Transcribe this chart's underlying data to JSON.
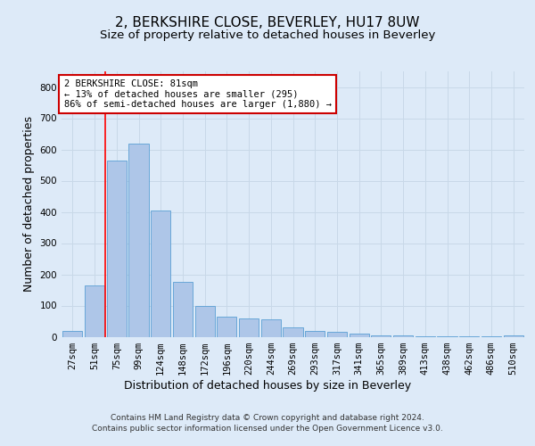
{
  "title": "2, BERKSHIRE CLOSE, BEVERLEY, HU17 8UW",
  "subtitle": "Size of property relative to detached houses in Beverley",
  "xlabel": "Distribution of detached houses by size in Beverley",
  "ylabel": "Number of detached properties",
  "footer_line1": "Contains HM Land Registry data © Crown copyright and database right 2024.",
  "footer_line2": "Contains public sector information licensed under the Open Government Licence v3.0.",
  "categories": [
    "27sqm",
    "51sqm",
    "75sqm",
    "99sqm",
    "124sqm",
    "148sqm",
    "172sqm",
    "196sqm",
    "220sqm",
    "244sqm",
    "269sqm",
    "293sqm",
    "317sqm",
    "341sqm",
    "365sqm",
    "389sqm",
    "413sqm",
    "438sqm",
    "462sqm",
    "486sqm",
    "510sqm"
  ],
  "values": [
    20,
    165,
    565,
    620,
    405,
    175,
    100,
    65,
    60,
    55,
    30,
    20,
    15,
    10,
    5,
    5,
    2,
    2,
    2,
    2,
    5
  ],
  "bar_color": "#aec6e8",
  "bar_edge_color": "#5a9fd4",
  "grid_color": "#c8d8e8",
  "background_color": "#ddeaf8",
  "plot_bg_color": "#ddeaf8",
  "red_line_x": 1.5,
  "annotation_text": "2 BERKSHIRE CLOSE: 81sqm\n← 13% of detached houses are smaller (295)\n86% of semi-detached houses are larger (1,880) →",
  "annotation_box_color": "#cc0000",
  "ylim": [
    0,
    850
  ],
  "yticks": [
    0,
    100,
    200,
    300,
    400,
    500,
    600,
    700,
    800
  ],
  "title_fontsize": 11,
  "subtitle_fontsize": 9.5,
  "axis_label_fontsize": 9,
  "tick_fontsize": 7.5,
  "annotation_fontsize": 7.5,
  "footer_fontsize": 6.5
}
